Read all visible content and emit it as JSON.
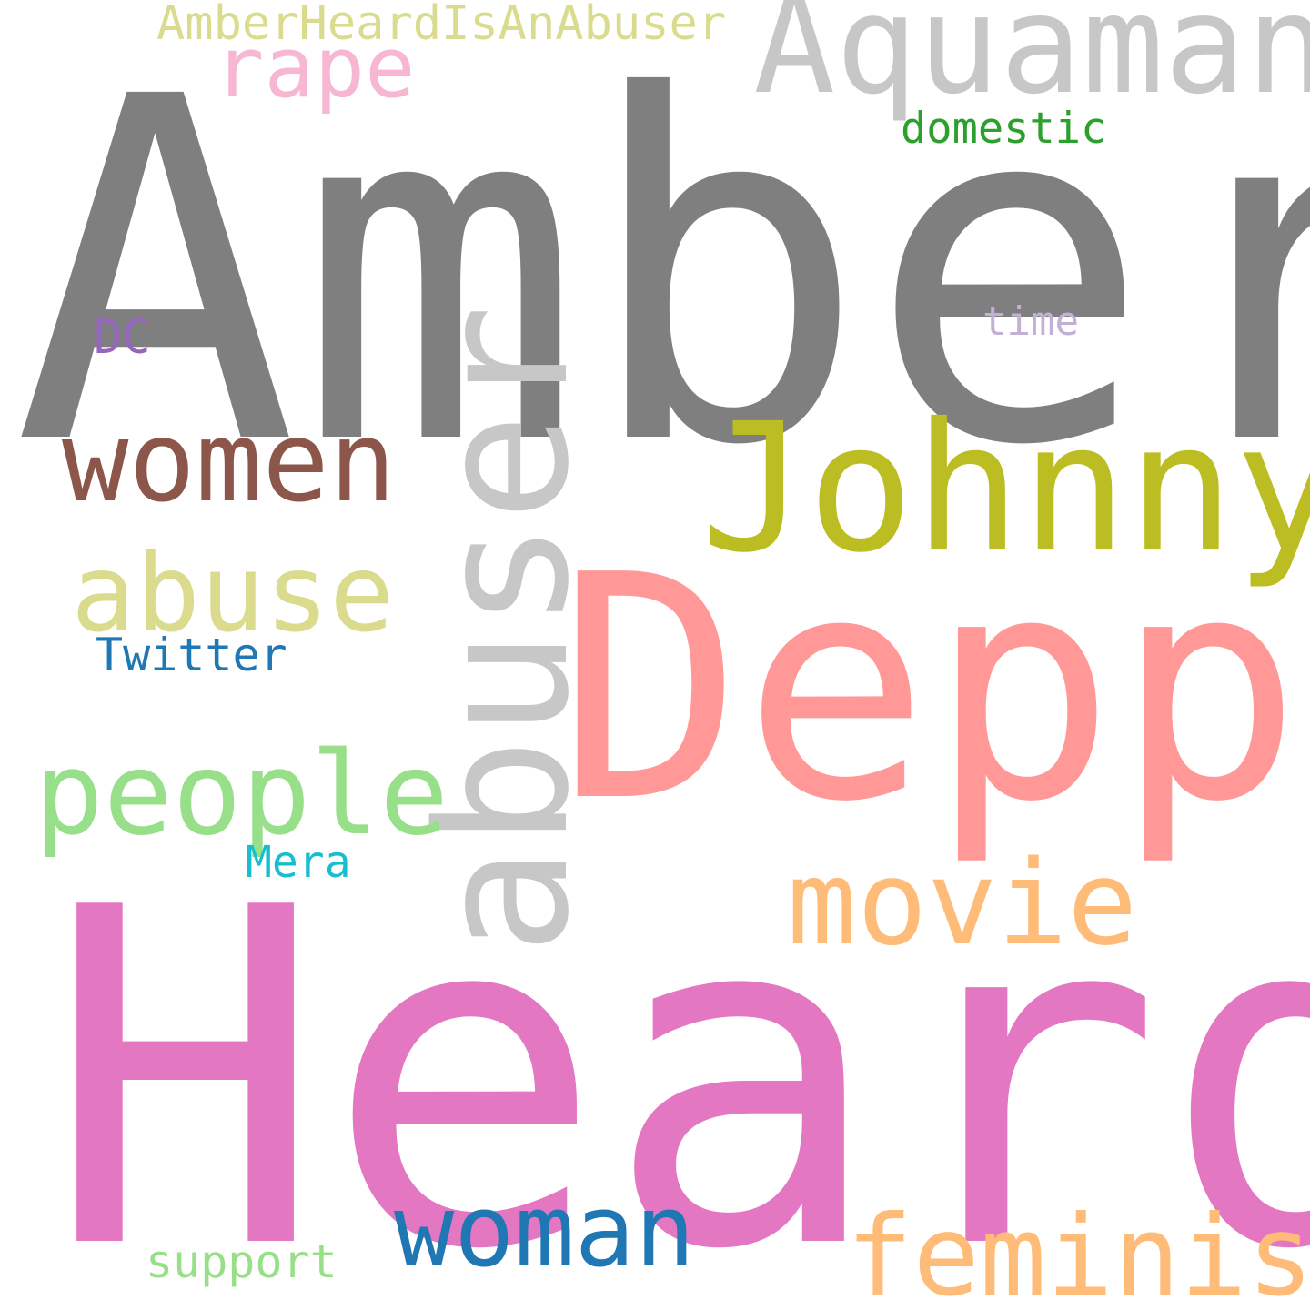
{
  "words": [
    {
      "text": "Amber",
      "color": "#7f7f7f"
    },
    {
      "text": "Heard",
      "color": "#e377c2"
    },
    {
      "text": "Depp",
      "color": "#ff9896"
    },
    {
      "text": "Aquaman",
      "color": "#c7c7c7"
    },
    {
      "text": "Johnny",
      "color": "#bcbd22"
    },
    {
      "text": "abuser",
      "color": "#c7c7c7"
    },
    {
      "text": "women",
      "color": "#8c564b"
    },
    {
      "text": "abuse",
      "color": "#dbdb8d"
    },
    {
      "text": "people",
      "color": "#98df8a"
    },
    {
      "text": "movie",
      "color": "#ffbb78"
    },
    {
      "text": "woman",
      "color": "#1f77b4"
    },
    {
      "text": "feminist",
      "color": "#ffbb78"
    },
    {
      "text": "rape",
      "color": "#f7b6d2"
    },
    {
      "text": "AmberHeardIsAnAbuser",
      "color": "#dbdb8d"
    },
    {
      "text": "domestic",
      "color": "#2ca02c"
    },
    {
      "text": "time",
      "color": "#c5b0d5"
    },
    {
      "text": "DC",
      "color": "#9467bd"
    },
    {
      "text": "Twitter",
      "color": "#1f77b4"
    },
    {
      "text": "Mera",
      "color": "#17becf"
    },
    {
      "text": "support",
      "color": "#98df8a"
    }
  ]
}
